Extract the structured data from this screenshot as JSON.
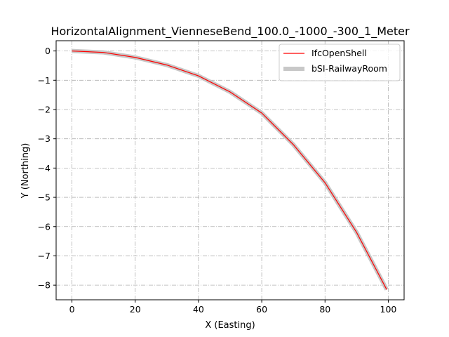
{
  "chart_data": {
    "type": "line",
    "title": "HorizontalAlignment_VienneseBend_100.0_-1000_-300_1_Meter",
    "xlabel": "X (Easting)",
    "ylabel": "Y (Northing)",
    "xlim": [
      -5,
      105
    ],
    "ylim": [
      -8.5,
      0.35
    ],
    "xticks": [
      0,
      20,
      40,
      60,
      80,
      100
    ],
    "yticks": [
      0,
      -1,
      -2,
      -3,
      -4,
      -5,
      -6,
      -7,
      -8
    ],
    "xtick_labels": [
      "0",
      "20",
      "40",
      "60",
      "80",
      "100"
    ],
    "ytick_labels": [
      "0",
      "−1",
      "−2",
      "−3",
      "−4",
      "−5",
      "−6",
      "−7",
      "−8"
    ],
    "grid": true,
    "legend_position": "top-right",
    "series": [
      {
        "name": "IfcOpenShell",
        "color": "#ff0000",
        "x": [
          0,
          10,
          20,
          30,
          40,
          50,
          60,
          70,
          80,
          90,
          99.5
        ],
        "y": [
          0,
          -0.05,
          -0.22,
          -0.48,
          -0.85,
          -1.4,
          -2.12,
          -3.2,
          -4.5,
          -6.2,
          -8.15
        ]
      },
      {
        "name": "bSI-RailwayRoom",
        "color": "#c8c8c8",
        "x": [
          0,
          10,
          20,
          30,
          40,
          50,
          60,
          70,
          80,
          90,
          99.5
        ],
        "y": [
          0,
          -0.05,
          -0.22,
          -0.48,
          -0.85,
          -1.4,
          -2.12,
          -3.2,
          -4.5,
          -6.2,
          -8.15
        ]
      }
    ]
  }
}
